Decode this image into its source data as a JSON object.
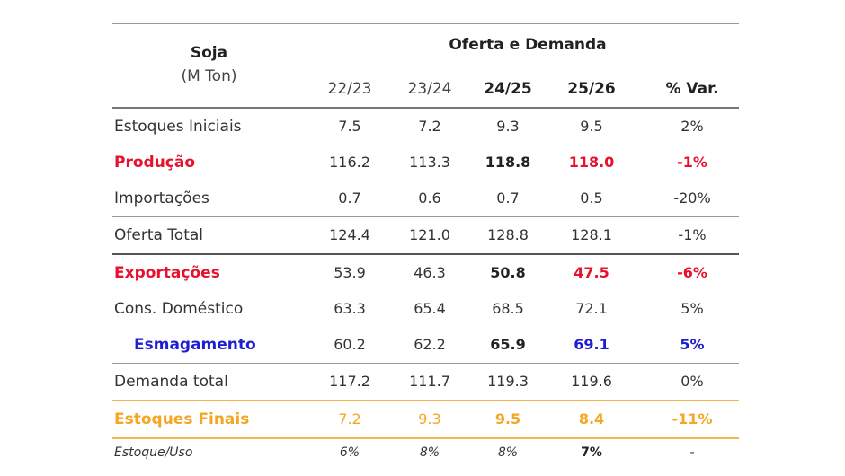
{
  "header": {
    "commodity": "Soja",
    "unit": "(M Ton)",
    "group_title": "Oferta e Demanda",
    "columns": [
      "22/23",
      "23/24",
      "24/25",
      "25/26",
      "% Var."
    ]
  },
  "rows": [
    {
      "label": "Estoques Iniciais",
      "values": [
        "7.5",
        "7.2",
        "9.3",
        "9.5",
        "2%"
      ]
    },
    {
      "label": "Produção",
      "values": [
        "116.2",
        "113.3",
        "118.8",
        "118.0",
        "-1%"
      ]
    },
    {
      "label": "Importações",
      "values": [
        "0.7",
        "0.6",
        "0.7",
        "0.5",
        "-20%"
      ]
    },
    {
      "label": "Oferta Total",
      "values": [
        "124.4",
        "121.0",
        "128.8",
        "128.1",
        "-1%"
      ]
    },
    {
      "label": "Exportações",
      "values": [
        "53.9",
        "46.3",
        "50.8",
        "47.5",
        "-6%"
      ]
    },
    {
      "label": "Cons. Doméstico",
      "values": [
        "63.3",
        "65.4",
        "68.5",
        "72.1",
        "5%"
      ]
    },
    {
      "label": "Esmagamento",
      "values": [
        "60.2",
        "62.2",
        "65.9",
        "69.1",
        "5%"
      ]
    },
    {
      "label": "Demanda total",
      "values": [
        "117.2",
        "111.7",
        "119.3",
        "119.6",
        "0%"
      ]
    },
    {
      "label": "Estoques Finais",
      "values": [
        "7.2",
        "9.3",
        "9.5",
        "8.4",
        "-11%"
      ]
    },
    {
      "label": "Estoque/Uso",
      "values": [
        "6%",
        "8%",
        "8%",
        "7%",
        "-"
      ]
    }
  ],
  "colors": {
    "red": "#e8112d",
    "blue": "#1f1fd0",
    "orange": "#f5a623"
  }
}
